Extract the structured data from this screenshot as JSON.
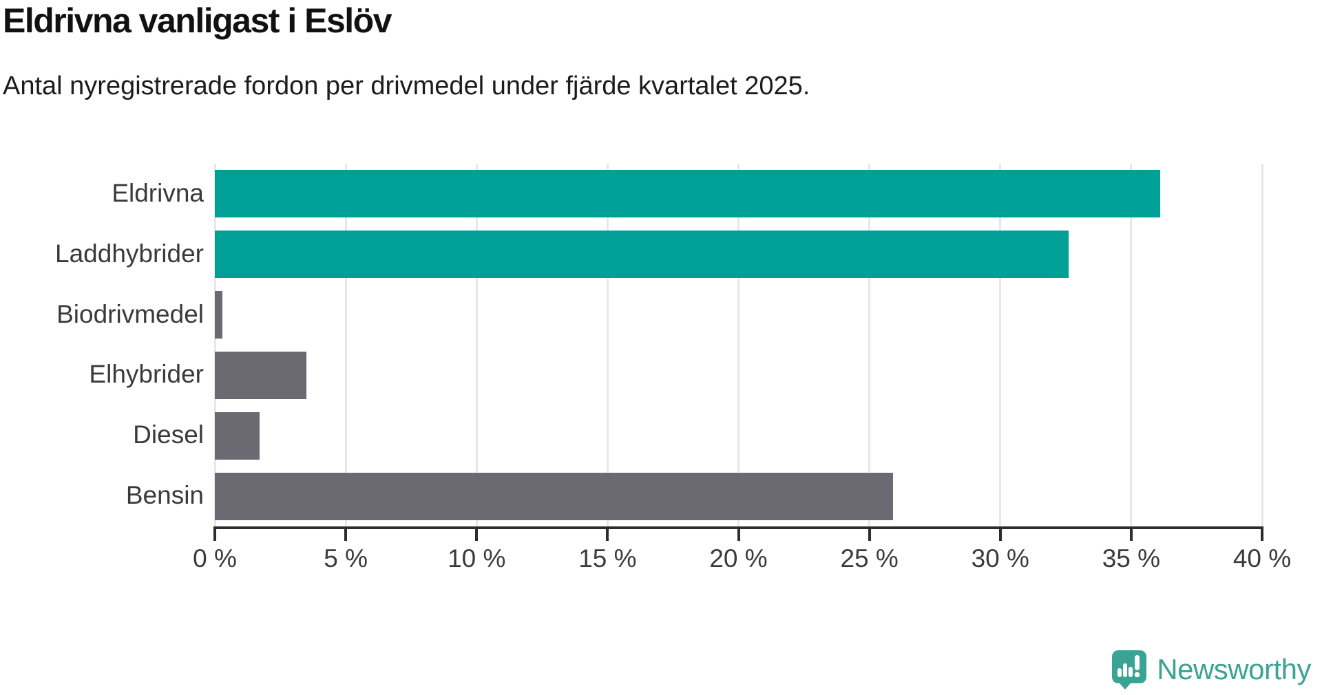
{
  "chart_data": {
    "type": "bar",
    "orientation": "horizontal",
    "title": "Eldrivna vanligast i Eslöv",
    "subtitle": "Antal nyregistrerade fordon per drivmedel under fjärde kvartalet 2025.",
    "categories": [
      "Eldrivna",
      "Laddhybrider",
      "Biodrivmedel",
      "Elhybrider",
      "Diesel",
      "Bensin"
    ],
    "values": [
      36.1,
      32.6,
      0.3,
      3.5,
      1.7,
      25.9
    ],
    "bar_colors": [
      "#00a096",
      "#00a096",
      "#6b6a72",
      "#6b6a72",
      "#6b6a72",
      "#6b6a72"
    ],
    "highlight_color": "#00a096",
    "default_color": "#6b6a72",
    "xlabel": "",
    "ylabel": "",
    "xlim": [
      0,
      40
    ],
    "x_ticks": [
      0,
      5,
      10,
      15,
      20,
      25,
      30,
      35,
      40
    ],
    "x_tick_suffix": " %",
    "grid": true,
    "legend": false
  },
  "footer": {
    "brand": "Newsworthy",
    "logo_icon": "newsworthy-speech-bubble-chart-icon",
    "brand_color": "#3aa394"
  }
}
